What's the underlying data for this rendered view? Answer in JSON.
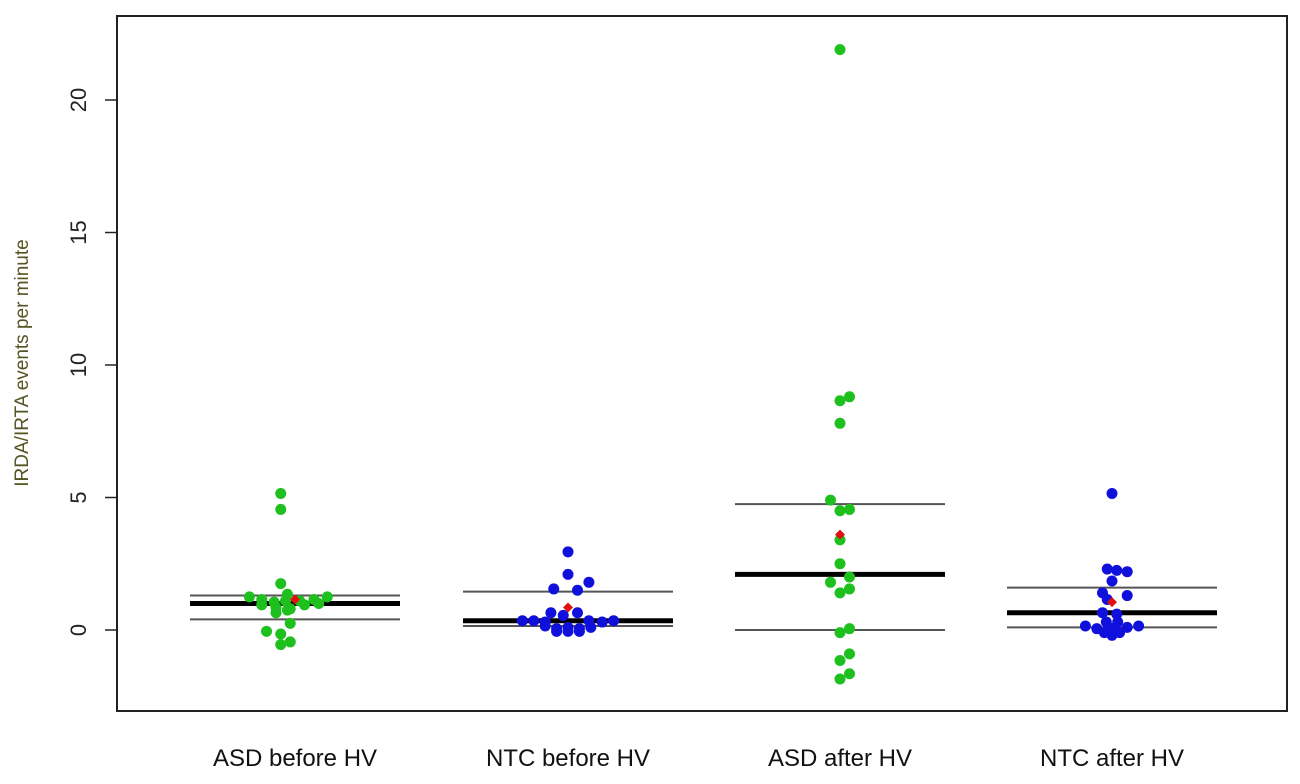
{
  "chart_data": {
    "type": "scatter",
    "subtype": "dot-strip-plot-with-summary-lines",
    "title": "",
    "xlabel": "",
    "ylabel": "IRDA/IRTA events per minute",
    "ylim": [
      -3,
      23
    ],
    "yticks": [
      0,
      5,
      10,
      15,
      20
    ],
    "grid": false,
    "legend": "none",
    "colors": {
      "ASD": "#1ec01e",
      "NTC": "#1010dd",
      "mean": "#e01010",
      "median_line": "#000000",
      "quartile_line": "#555555"
    },
    "categories": [
      "ASD before HV",
      "NTC before HV",
      "ASD after HV",
      "NTC after HV"
    ],
    "groups": [
      {
        "name": "ASD before HV",
        "group": "ASD",
        "median": 1.0,
        "q1": 0.4,
        "q3": 1.3,
        "mean": 1.15,
        "points": [
          [
            -0.15,
            5.15
          ],
          [
            -0.15,
            4.55
          ],
          [
            -0.15,
            1.75
          ],
          [
            -0.08,
            1.35
          ],
          [
            -0.48,
            1.25
          ],
          [
            -0.35,
            1.15
          ],
          [
            -0.22,
            1.05
          ],
          [
            -0.1,
            1.1
          ],
          [
            0.05,
            1.1
          ],
          [
            0.2,
            1.15
          ],
          [
            0.34,
            1.25
          ],
          [
            -0.35,
            0.95
          ],
          [
            -0.2,
            0.85
          ],
          [
            -0.05,
            0.8
          ],
          [
            0.1,
            0.95
          ],
          [
            0.25,
            1.0
          ],
          [
            -0.2,
            0.65
          ],
          [
            -0.08,
            0.75
          ],
          [
            -0.05,
            0.25
          ],
          [
            -0.3,
            -0.05
          ],
          [
            -0.15,
            -0.15
          ],
          [
            -0.05,
            -0.45
          ],
          [
            -0.15,
            -0.55
          ]
        ]
      },
      {
        "name": "NTC before HV",
        "group": "NTC",
        "median": 0.35,
        "q1": 0.15,
        "q3": 1.45,
        "mean": 0.85,
        "points": [
          [
            0.0,
            2.95
          ],
          [
            0.0,
            2.1
          ],
          [
            0.22,
            1.8
          ],
          [
            -0.15,
            1.55
          ],
          [
            0.1,
            1.5
          ],
          [
            -0.18,
            0.65
          ],
          [
            -0.05,
            0.55
          ],
          [
            0.1,
            0.65
          ],
          [
            -0.48,
            0.35
          ],
          [
            -0.36,
            0.35
          ],
          [
            -0.24,
            0.3
          ],
          [
            0.22,
            0.35
          ],
          [
            0.36,
            0.3
          ],
          [
            0.48,
            0.35
          ],
          [
            -0.24,
            0.15
          ],
          [
            -0.12,
            0.05
          ],
          [
            0.0,
            0.1
          ],
          [
            0.12,
            0.05
          ],
          [
            0.24,
            0.1
          ],
          [
            -0.12,
            -0.05
          ],
          [
            0.0,
            -0.05
          ],
          [
            0.12,
            -0.05
          ]
        ]
      },
      {
        "name": "ASD after HV",
        "group": "ASD",
        "median": 2.1,
        "q1": 0.0,
        "q3": 4.75,
        "mean": 3.6,
        "points": [
          [
            0.0,
            21.9
          ],
          [
            0.1,
            8.8
          ],
          [
            0.0,
            8.65
          ],
          [
            0.0,
            7.8
          ],
          [
            -0.1,
            4.9
          ],
          [
            0.0,
            4.5
          ],
          [
            0.1,
            4.55
          ],
          [
            0.0,
            3.4
          ],
          [
            0.0,
            2.5
          ],
          [
            -0.1,
            1.8
          ],
          [
            0.1,
            2.0
          ],
          [
            0.0,
            1.4
          ],
          [
            0.1,
            1.55
          ],
          [
            0.1,
            0.05
          ],
          [
            0.0,
            -0.1
          ],
          [
            0.1,
            -0.9
          ],
          [
            0.0,
            -1.15
          ],
          [
            0.1,
            -1.65
          ],
          [
            0.0,
            -1.85
          ]
        ]
      },
      {
        "name": "NTC after HV",
        "group": "NTC",
        "median": 0.65,
        "q1": 0.1,
        "q3": 1.6,
        "mean": 1.05,
        "points": [
          [
            0.0,
            5.15
          ],
          [
            -0.05,
            2.3
          ],
          [
            0.05,
            2.25
          ],
          [
            0.16,
            2.2
          ],
          [
            0.0,
            1.85
          ],
          [
            -0.1,
            1.4
          ],
          [
            0.16,
            1.3
          ],
          [
            -0.05,
            1.15
          ],
          [
            -0.1,
            0.65
          ],
          [
            0.05,
            0.6
          ],
          [
            -0.28,
            0.15
          ],
          [
            -0.16,
            0.05
          ],
          [
            0.0,
            0.05
          ],
          [
            0.16,
            0.1
          ],
          [
            0.28,
            0.15
          ],
          [
            -0.08,
            -0.1
          ],
          [
            0.08,
            -0.1
          ],
          [
            0.0,
            -0.2
          ],
          [
            -0.06,
            0.3
          ],
          [
            0.06,
            0.3
          ]
        ]
      }
    ]
  }
}
